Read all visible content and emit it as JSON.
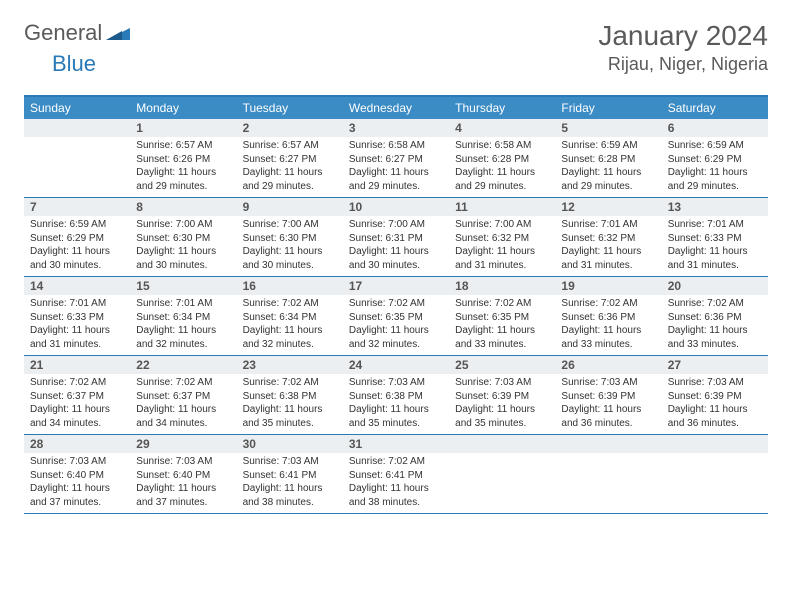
{
  "brand": {
    "name_a": "General",
    "name_b": "Blue",
    "accent_color": "#2a7ab8"
  },
  "title": "January 2024",
  "location": "Rijau, Niger, Nigeria",
  "colors": {
    "header_bg": "#3b8bc4",
    "border": "#2a7ab8",
    "daynum_bg": "#eceff1",
    "daynum_text": "#555555",
    "body_text": "#333333",
    "page_bg": "#ffffff",
    "title_text": "#5a5a5a"
  },
  "day_names": [
    "Sunday",
    "Monday",
    "Tuesday",
    "Wednesday",
    "Thursday",
    "Friday",
    "Saturday"
  ],
  "weeks": [
    [
      {
        "n": "",
        "lines": []
      },
      {
        "n": "1",
        "lines": [
          "Sunrise: 6:57 AM",
          "Sunset: 6:26 PM",
          "Daylight: 11 hours",
          "and 29 minutes."
        ]
      },
      {
        "n": "2",
        "lines": [
          "Sunrise: 6:57 AM",
          "Sunset: 6:27 PM",
          "Daylight: 11 hours",
          "and 29 minutes."
        ]
      },
      {
        "n": "3",
        "lines": [
          "Sunrise: 6:58 AM",
          "Sunset: 6:27 PM",
          "Daylight: 11 hours",
          "and 29 minutes."
        ]
      },
      {
        "n": "4",
        "lines": [
          "Sunrise: 6:58 AM",
          "Sunset: 6:28 PM",
          "Daylight: 11 hours",
          "and 29 minutes."
        ]
      },
      {
        "n": "5",
        "lines": [
          "Sunrise: 6:59 AM",
          "Sunset: 6:28 PM",
          "Daylight: 11 hours",
          "and 29 minutes."
        ]
      },
      {
        "n": "6",
        "lines": [
          "Sunrise: 6:59 AM",
          "Sunset: 6:29 PM",
          "Daylight: 11 hours",
          "and 29 minutes."
        ]
      }
    ],
    [
      {
        "n": "7",
        "lines": [
          "Sunrise: 6:59 AM",
          "Sunset: 6:29 PM",
          "Daylight: 11 hours",
          "and 30 minutes."
        ]
      },
      {
        "n": "8",
        "lines": [
          "Sunrise: 7:00 AM",
          "Sunset: 6:30 PM",
          "Daylight: 11 hours",
          "and 30 minutes."
        ]
      },
      {
        "n": "9",
        "lines": [
          "Sunrise: 7:00 AM",
          "Sunset: 6:30 PM",
          "Daylight: 11 hours",
          "and 30 minutes."
        ]
      },
      {
        "n": "10",
        "lines": [
          "Sunrise: 7:00 AM",
          "Sunset: 6:31 PM",
          "Daylight: 11 hours",
          "and 30 minutes."
        ]
      },
      {
        "n": "11",
        "lines": [
          "Sunrise: 7:00 AM",
          "Sunset: 6:32 PM",
          "Daylight: 11 hours",
          "and 31 minutes."
        ]
      },
      {
        "n": "12",
        "lines": [
          "Sunrise: 7:01 AM",
          "Sunset: 6:32 PM",
          "Daylight: 11 hours",
          "and 31 minutes."
        ]
      },
      {
        "n": "13",
        "lines": [
          "Sunrise: 7:01 AM",
          "Sunset: 6:33 PM",
          "Daylight: 11 hours",
          "and 31 minutes."
        ]
      }
    ],
    [
      {
        "n": "14",
        "lines": [
          "Sunrise: 7:01 AM",
          "Sunset: 6:33 PM",
          "Daylight: 11 hours",
          "and 31 minutes."
        ]
      },
      {
        "n": "15",
        "lines": [
          "Sunrise: 7:01 AM",
          "Sunset: 6:34 PM",
          "Daylight: 11 hours",
          "and 32 minutes."
        ]
      },
      {
        "n": "16",
        "lines": [
          "Sunrise: 7:02 AM",
          "Sunset: 6:34 PM",
          "Daylight: 11 hours",
          "and 32 minutes."
        ]
      },
      {
        "n": "17",
        "lines": [
          "Sunrise: 7:02 AM",
          "Sunset: 6:35 PM",
          "Daylight: 11 hours",
          "and 32 minutes."
        ]
      },
      {
        "n": "18",
        "lines": [
          "Sunrise: 7:02 AM",
          "Sunset: 6:35 PM",
          "Daylight: 11 hours",
          "and 33 minutes."
        ]
      },
      {
        "n": "19",
        "lines": [
          "Sunrise: 7:02 AM",
          "Sunset: 6:36 PM",
          "Daylight: 11 hours",
          "and 33 minutes."
        ]
      },
      {
        "n": "20",
        "lines": [
          "Sunrise: 7:02 AM",
          "Sunset: 6:36 PM",
          "Daylight: 11 hours",
          "and 33 minutes."
        ]
      }
    ],
    [
      {
        "n": "21",
        "lines": [
          "Sunrise: 7:02 AM",
          "Sunset: 6:37 PM",
          "Daylight: 11 hours",
          "and 34 minutes."
        ]
      },
      {
        "n": "22",
        "lines": [
          "Sunrise: 7:02 AM",
          "Sunset: 6:37 PM",
          "Daylight: 11 hours",
          "and 34 minutes."
        ]
      },
      {
        "n": "23",
        "lines": [
          "Sunrise: 7:02 AM",
          "Sunset: 6:38 PM",
          "Daylight: 11 hours",
          "and 35 minutes."
        ]
      },
      {
        "n": "24",
        "lines": [
          "Sunrise: 7:03 AM",
          "Sunset: 6:38 PM",
          "Daylight: 11 hours",
          "and 35 minutes."
        ]
      },
      {
        "n": "25",
        "lines": [
          "Sunrise: 7:03 AM",
          "Sunset: 6:39 PM",
          "Daylight: 11 hours",
          "and 35 minutes."
        ]
      },
      {
        "n": "26",
        "lines": [
          "Sunrise: 7:03 AM",
          "Sunset: 6:39 PM",
          "Daylight: 11 hours",
          "and 36 minutes."
        ]
      },
      {
        "n": "27",
        "lines": [
          "Sunrise: 7:03 AM",
          "Sunset: 6:39 PM",
          "Daylight: 11 hours",
          "and 36 minutes."
        ]
      }
    ],
    [
      {
        "n": "28",
        "lines": [
          "Sunrise: 7:03 AM",
          "Sunset: 6:40 PM",
          "Daylight: 11 hours",
          "and 37 minutes."
        ]
      },
      {
        "n": "29",
        "lines": [
          "Sunrise: 7:03 AM",
          "Sunset: 6:40 PM",
          "Daylight: 11 hours",
          "and 37 minutes."
        ]
      },
      {
        "n": "30",
        "lines": [
          "Sunrise: 7:03 AM",
          "Sunset: 6:41 PM",
          "Daylight: 11 hours",
          "and 38 minutes."
        ]
      },
      {
        "n": "31",
        "lines": [
          "Sunrise: 7:02 AM",
          "Sunset: 6:41 PM",
          "Daylight: 11 hours",
          "and 38 minutes."
        ]
      },
      {
        "n": "",
        "lines": []
      },
      {
        "n": "",
        "lines": []
      },
      {
        "n": "",
        "lines": []
      }
    ]
  ]
}
